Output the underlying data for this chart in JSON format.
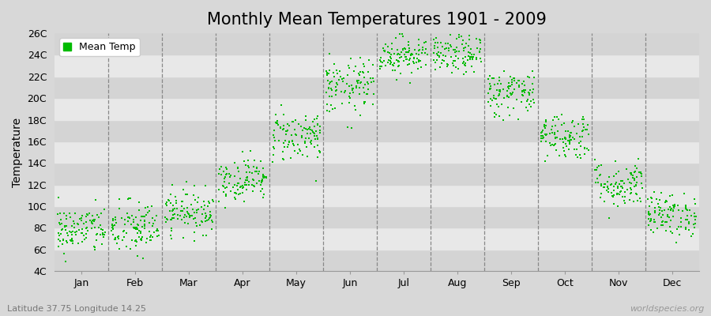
{
  "title": "Monthly Mean Temperatures 1901 - 2009",
  "ylabel": "Temperature",
  "xlabel": "",
  "subtitle": "Latitude 37.75 Longitude 14.25",
  "watermark": "worldspecies.org",
  "legend_label": "Mean Temp",
  "dot_color": "#00bb00",
  "dot_size": 3,
  "ylim": [
    4,
    26
  ],
  "yticks": [
    4,
    6,
    8,
    10,
    12,
    14,
    16,
    18,
    20,
    22,
    24,
    26
  ],
  "ytick_labels": [
    "4C",
    "6C",
    "8C",
    "10C",
    "12C",
    "14C",
    "16C",
    "18C",
    "20C",
    "22C",
    "24C",
    "26C"
  ],
  "months": [
    "Jan",
    "Feb",
    "Mar",
    "Apr",
    "May",
    "Jun",
    "Jul",
    "Aug",
    "Sep",
    "Oct",
    "Nov",
    "Dec"
  ],
  "month_means": [
    7.8,
    7.9,
    9.5,
    12.5,
    16.5,
    21.0,
    24.0,
    24.0,
    20.5,
    16.5,
    12.0,
    9.2
  ],
  "month_stds": [
    1.1,
    1.3,
    1.0,
    1.0,
    1.2,
    1.3,
    0.9,
    0.9,
    1.1,
    1.1,
    1.1,
    1.0
  ],
  "n_years": 109,
  "background_color": "#d8d8d8",
  "plot_background": "#d8d8d8",
  "band_color_dark": "#d4d4d4",
  "band_color_light": "#e8e8e8",
  "dashed_line_color": "#888888",
  "title_fontsize": 15,
  "axis_label_fontsize": 10,
  "tick_fontsize": 9,
  "legend_fontsize": 9
}
